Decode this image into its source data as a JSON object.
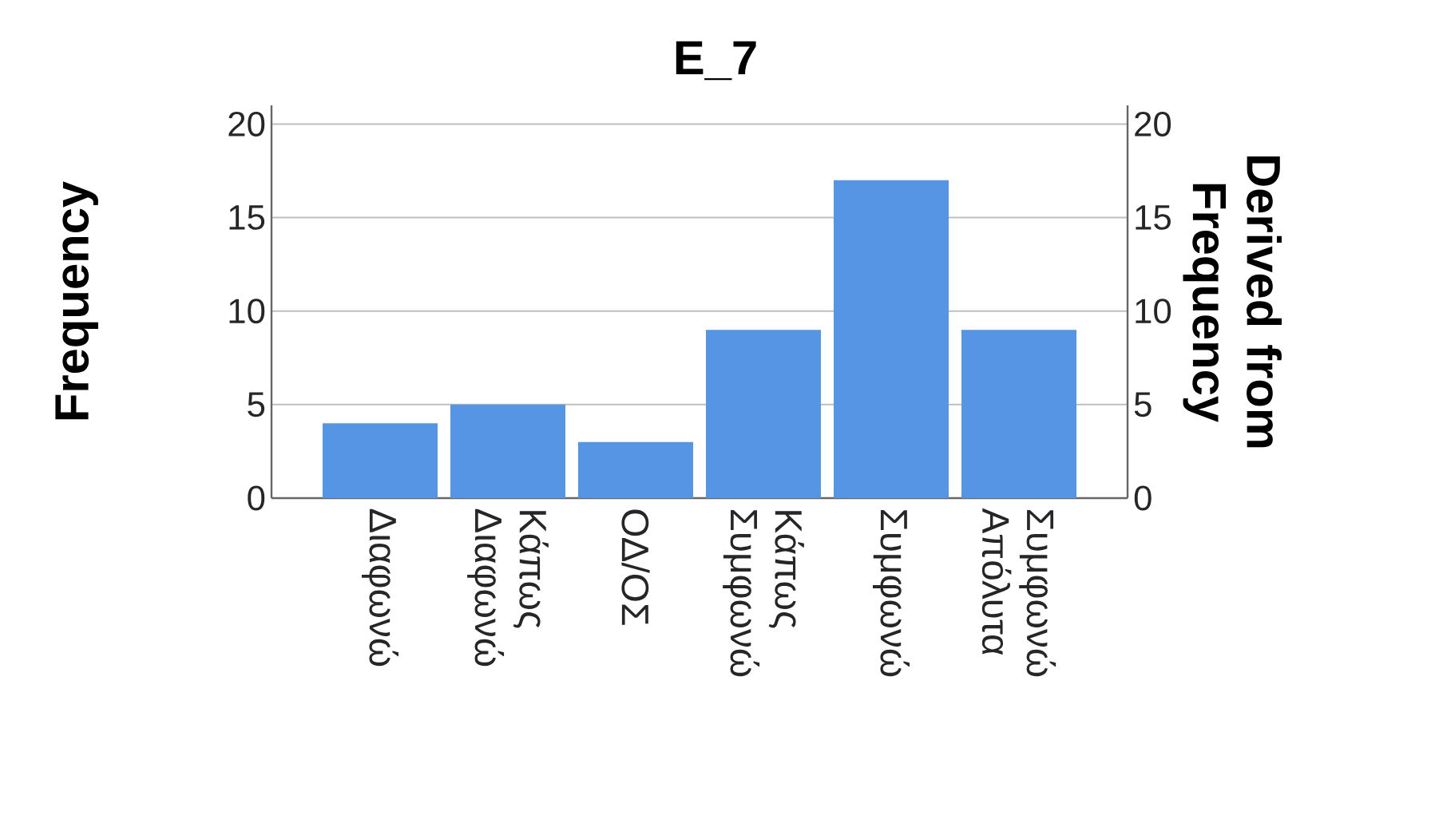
{
  "chart_data": {
    "type": "bar",
    "title": "E_7",
    "categories": [
      "Διαφωνώ",
      "Κάπως Διαφωνώ",
      "ΟΔ/ΟΣ",
      "Κάπως Συμφωνώ",
      "Συμφωνώ",
      "Συμφωνώ Απόλυτα"
    ],
    "values": [
      4,
      5,
      3,
      9,
      17,
      9
    ],
    "color": "#5595e3",
    "ylabel": "Frequency",
    "y2label": "Derived from Frequency",
    "ylim": [
      0,
      21
    ],
    "yticks": [
      0,
      5,
      10,
      15,
      20
    ],
    "y2lim": [
      0,
      21
    ],
    "y2ticks": [
      0,
      5,
      10,
      15,
      20
    ],
    "grid": "y"
  }
}
